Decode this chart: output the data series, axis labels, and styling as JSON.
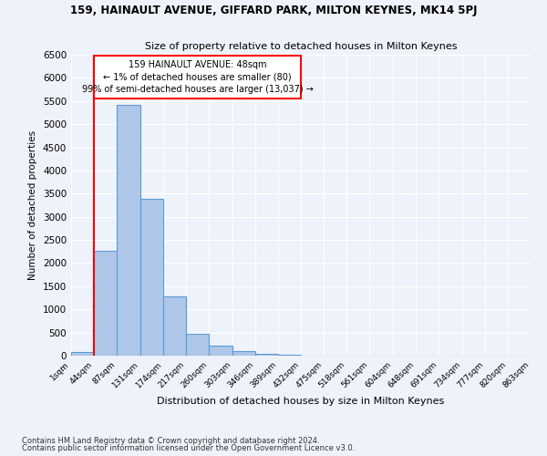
{
  "title": "159, HAINAULT AVENUE, GIFFARD PARK, MILTON KEYNES, MK14 5PJ",
  "subtitle": "Size of property relative to detached houses in Milton Keynes",
  "xlabel": "Distribution of detached houses by size in Milton Keynes",
  "ylabel": "Number of detached properties",
  "bar_color": "#aec6e8",
  "bar_edge_color": "#5b9bd5",
  "annotation_box_color": "#ff0000",
  "annotation_text": "159 HAINAULT AVENUE: 48sqm\n← 1% of detached houses are smaller (80)\n99% of semi-detached houses are larger (13,037) →",
  "property_line_x": 44,
  "footer1": "Contains HM Land Registry data © Crown copyright and database right 2024.",
  "footer2": "Contains public sector information licensed under the Open Government Licence v3.0.",
  "bin_edges": [
    1,
    44,
    87,
    131,
    174,
    217,
    260,
    303,
    346,
    389,
    432,
    475,
    518,
    561,
    604,
    648,
    691,
    734,
    777,
    820,
    863
  ],
  "bar_heights": [
    80,
    2270,
    5420,
    3390,
    1290,
    475,
    215,
    95,
    30,
    10,
    5,
    5,
    2,
    2,
    1,
    1,
    1,
    0,
    0,
    0
  ],
  "ylim": [
    0,
    6500
  ],
  "background_color": "#eef2fa",
  "grid_color": "#ffffff",
  "yticks": [
    0,
    500,
    1000,
    1500,
    2000,
    2500,
    3000,
    3500,
    4000,
    4500,
    5000,
    5500,
    6000,
    6500
  ]
}
